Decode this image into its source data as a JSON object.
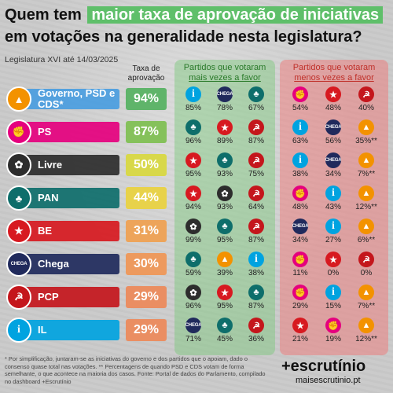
{
  "title_plain": "Quem tem",
  "title_highlight": "maior taxa de aprovação de iniciativas",
  "title_line2": "em votações na generalidade nesta legislatura?",
  "subtitle": "Legislatura XVI até 14/03/2025",
  "col_rate_header": "Taxa de aprovação",
  "col_more_header_1": "Partidos que votaram",
  "col_more_header_2": "mais vezes a favor",
  "col_less_header_1": "Partidos que votaram",
  "col_less_header_2": "menos vezes a favor",
  "footnote": "* Por simplificação, juntaram-se as iniciativas do governo e dos partidos que o apoiam, dado o consenso quase total nas votações. ** Percentagens de quando PSD e CDS votam de forma semelhante, o que acontece na maioria dos casos. Fonte: Portal de dados do Parlamento, compilado no dashboard +Escrutínio",
  "brand": "+escrutínio",
  "brand_url": "maisescrutinio.pt",
  "colors": {
    "green_panel": "#78c878",
    "red_panel": "#f07878",
    "accent": "#5fbf6a"
  },
  "parties": {
    "gov": {
      "icon": "gov-icon",
      "color": "#f39200",
      "glyph": "▲"
    },
    "ps": {
      "icon": "ps-rose-icon",
      "color": "#e5007e",
      "glyph": "✊"
    },
    "livre": {
      "icon": "livre-poppy-icon",
      "color": "#2d2d2d",
      "glyph": "✿"
    },
    "pan": {
      "icon": "pan-tree-icon",
      "color": "#0e6e6b",
      "glyph": "♣"
    },
    "be": {
      "icon": "be-star-icon",
      "color": "#d71920",
      "glyph": "★"
    },
    "chega": {
      "icon": "chega-icon",
      "color": "#202a5c",
      "glyph": "CHEGA"
    },
    "pcp": {
      "icon": "pcp-hammer-sickle-icon",
      "color": "#c4161c",
      "glyph": "☭"
    },
    "il": {
      "icon": "il-icon",
      "color": "#00a3e0",
      "glyph": "i"
    }
  },
  "chart_data": {
    "type": "table",
    "title": "Quem tem maior taxa de aprovação de iniciativas em votações na generalidade nesta legislatura?",
    "rows": [
      {
        "party": "Governo, PSD e CDS*",
        "key": "gov",
        "rate": "94%",
        "rate_value": 94,
        "rate_color": "#5fb46a",
        "more": [
          {
            "p": "il",
            "v": "85%"
          },
          {
            "p": "chega",
            "v": "78%"
          },
          {
            "p": "pan",
            "v": "67%"
          }
        ],
        "less": [
          {
            "p": "ps",
            "v": "54%"
          },
          {
            "p": "be",
            "v": "48%"
          },
          {
            "p": "pcp",
            "v": "40%"
          }
        ]
      },
      {
        "party": "PS",
        "key": "ps",
        "rate": "87%",
        "rate_value": 87,
        "rate_color": "#85c15b",
        "more": [
          {
            "p": "pan",
            "v": "96%"
          },
          {
            "p": "be",
            "v": "89%"
          },
          {
            "p": "pcp",
            "v": "87%"
          }
        ],
        "less": [
          {
            "p": "il",
            "v": "63%"
          },
          {
            "p": "chega",
            "v": "56%"
          },
          {
            "p": "gov",
            "v": "35%**"
          }
        ]
      },
      {
        "party": "Livre",
        "key": "livre",
        "rate": "50%",
        "rate_value": 50,
        "rate_color": "#d8d84a",
        "more": [
          {
            "p": "be",
            "v": "95%"
          },
          {
            "p": "pan",
            "v": "93%"
          },
          {
            "p": "pcp",
            "v": "75%"
          }
        ],
        "less": [
          {
            "p": "il",
            "v": "38%"
          },
          {
            "p": "chega",
            "v": "34%"
          },
          {
            "p": "gov",
            "v": "7%**"
          }
        ]
      },
      {
        "party": "PAN",
        "key": "pan",
        "rate": "44%",
        "rate_value": 44,
        "rate_color": "#e8d24a",
        "more": [
          {
            "p": "be",
            "v": "94%"
          },
          {
            "p": "livre",
            "v": "93%"
          },
          {
            "p": "pcp",
            "v": "64%"
          }
        ],
        "less": [
          {
            "p": "ps",
            "v": "48%"
          },
          {
            "p": "il",
            "v": "43%"
          },
          {
            "p": "gov",
            "v": "12%**"
          }
        ]
      },
      {
        "party": "BE",
        "key": "be",
        "rate": "31%",
        "rate_value": 31,
        "rate_color": "#eda45a",
        "more": [
          {
            "p": "livre",
            "v": "99%"
          },
          {
            "p": "pan",
            "v": "95%"
          },
          {
            "p": "pcp",
            "v": "87%"
          }
        ],
        "less": [
          {
            "p": "chega",
            "v": "34%"
          },
          {
            "p": "il",
            "v": "27%"
          },
          {
            "p": "gov",
            "v": "6%**"
          }
        ]
      },
      {
        "party": "Chega",
        "key": "chega",
        "rate": "30%",
        "rate_value": 30,
        "rate_color": "#ed9a5e",
        "more": [
          {
            "p": "pan",
            "v": "59%"
          },
          {
            "p": "gov",
            "v": "39%"
          },
          {
            "p": "il",
            "v": "38%"
          }
        ],
        "less": [
          {
            "p": "ps",
            "v": "11%"
          },
          {
            "p": "be",
            "v": "0%"
          },
          {
            "p": "pcp",
            "v": "0%"
          }
        ]
      },
      {
        "party": "PCP",
        "key": "pcp",
        "rate": "29%",
        "rate_value": 29,
        "rate_color": "#ea8e62",
        "more": [
          {
            "p": "livre",
            "v": "96%"
          },
          {
            "p": "be",
            "v": "95%"
          },
          {
            "p": "pan",
            "v": "87%"
          }
        ],
        "less": [
          {
            "p": "ps",
            "v": "29%"
          },
          {
            "p": "il",
            "v": "15%"
          },
          {
            "p": "gov",
            "v": "7%**"
          }
        ]
      },
      {
        "party": "IL",
        "key": "il",
        "rate": "29%",
        "rate_value": 29,
        "rate_color": "#ea8e62",
        "more": [
          {
            "p": "chega",
            "v": "71%"
          },
          {
            "p": "pan",
            "v": "45%"
          },
          {
            "p": "pcp",
            "v": "36%"
          }
        ],
        "less": [
          {
            "p": "be",
            "v": "21%"
          },
          {
            "p": "ps",
            "v": "19%"
          },
          {
            "p": "gov",
            "v": "12%**"
          }
        ]
      }
    ]
  }
}
